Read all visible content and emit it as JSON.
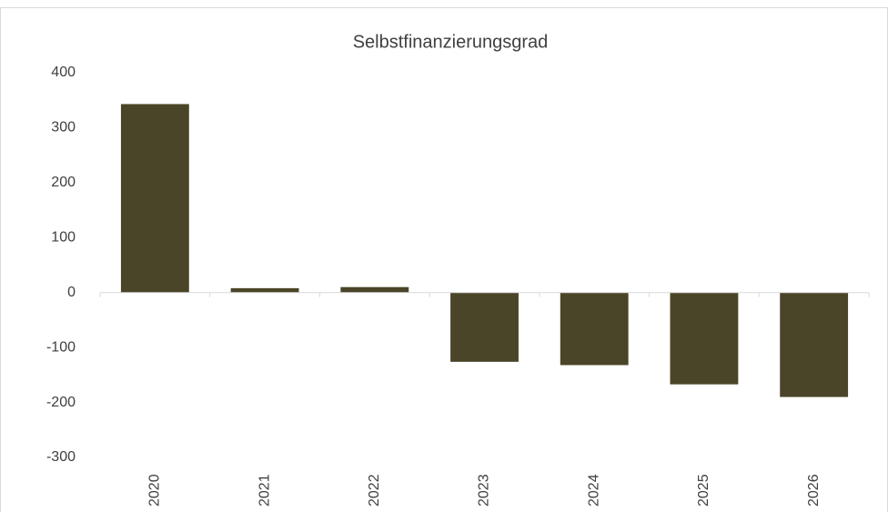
{
  "chart_data": {
    "type": "bar",
    "title": "Selbstfinanzierungsgrad",
    "categories": [
      "2020",
      "2021",
      "2022",
      "2023",
      "2024",
      "2025",
      "2026"
    ],
    "values": [
      343,
      8,
      10,
      -126,
      -132,
      -167,
      -190
    ],
    "color": "#4a4528",
    "ylim": [
      -300,
      400
    ],
    "yticks": [
      -300,
      -200,
      -100,
      0,
      100,
      200,
      300,
      400
    ],
    "grid": false
  }
}
